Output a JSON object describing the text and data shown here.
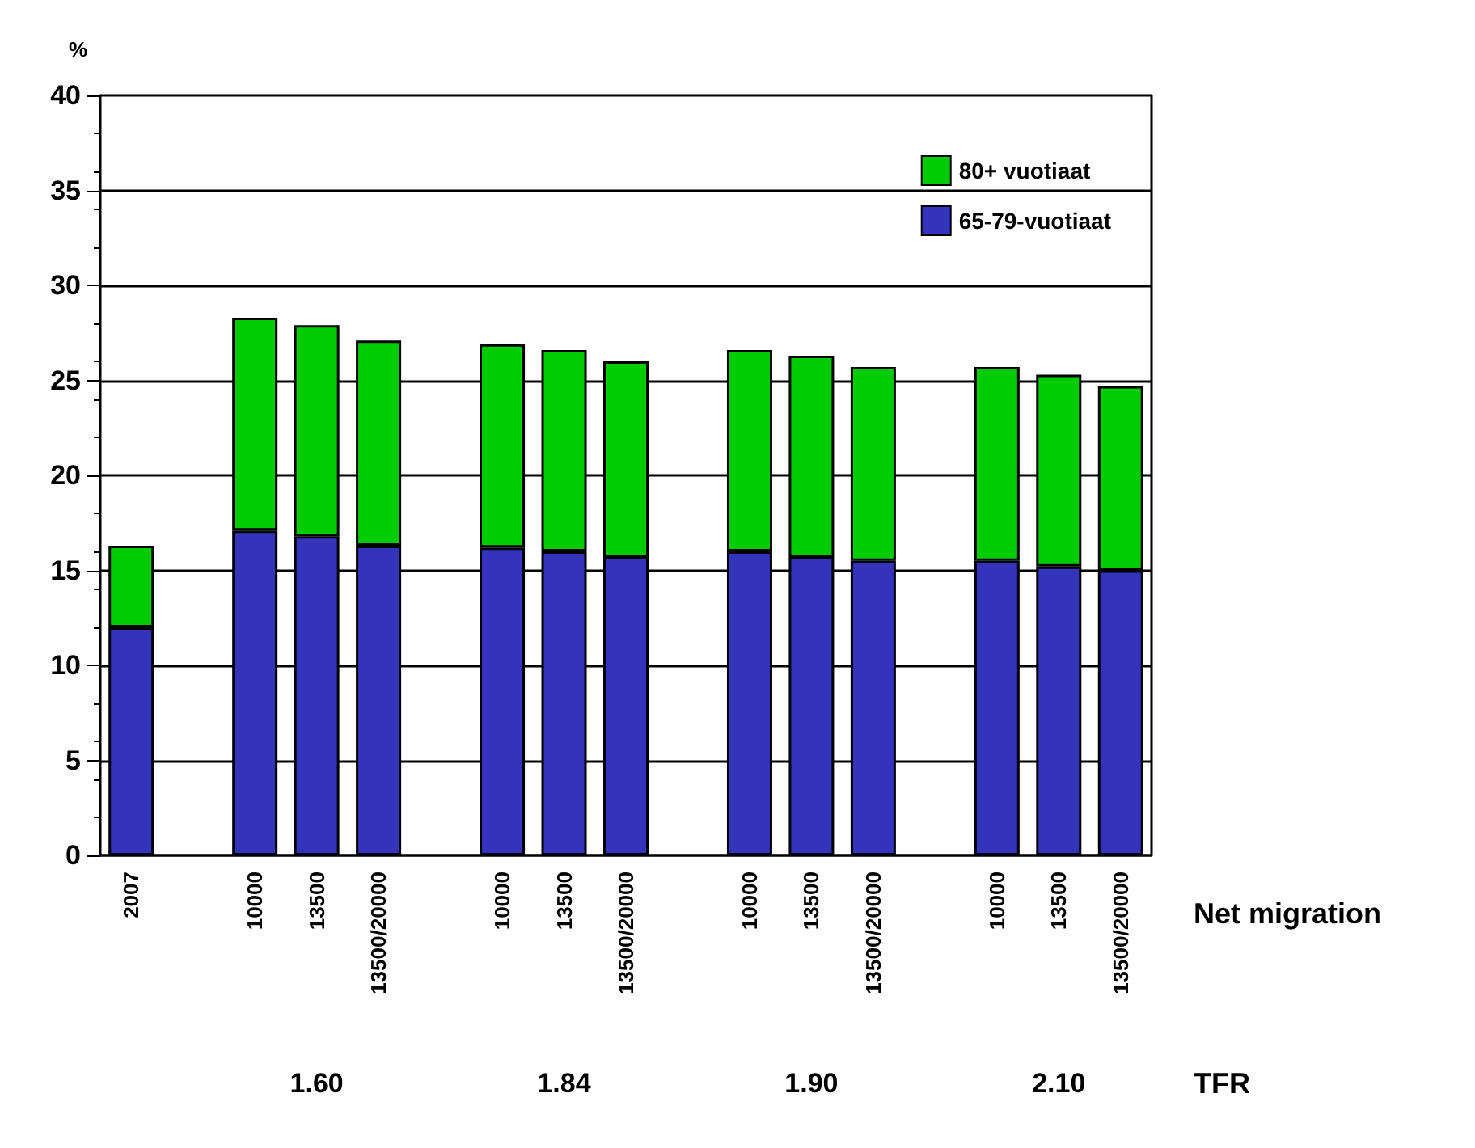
{
  "chart_data": {
    "type": "bar",
    "stacked": true,
    "ylabel": "%",
    "categories": [
      "2007",
      null,
      "10000",
      "13500",
      "13500/20000",
      null,
      "10000",
      "13500",
      "13500/20000",
      null,
      "10000",
      "13500",
      "13500/20000",
      null,
      "10000",
      "13500",
      "13500/20000"
    ],
    "series": [
      {
        "name": "65-79-vuotiaat",
        "color": "#3333bb",
        "values": [
          12.0,
          null,
          17.1,
          16.8,
          16.3,
          null,
          16.2,
          16.0,
          15.7,
          null,
          16.0,
          15.7,
          15.5,
          null,
          15.5,
          15.2,
          15.0
        ]
      },
      {
        "name": "80+ vuotiaat",
        "color": "#00cc00",
        "values": [
          4.3,
          null,
          11.2,
          11.1,
          10.8,
          null,
          10.7,
          10.6,
          10.3,
          null,
          10.6,
          10.6,
          10.2,
          null,
          10.2,
          10.1,
          9.7
        ]
      }
    ],
    "ylim": [
      0,
      40
    ],
    "yticks": [
      0,
      5,
      10,
      15,
      20,
      25,
      30,
      35,
      40
    ],
    "grid": "y",
    "legend": "top right",
    "annotations": [
      "Net migration",
      "1.60",
      "1.84",
      "1.90",
      "2.10",
      "TFR"
    ]
  }
}
